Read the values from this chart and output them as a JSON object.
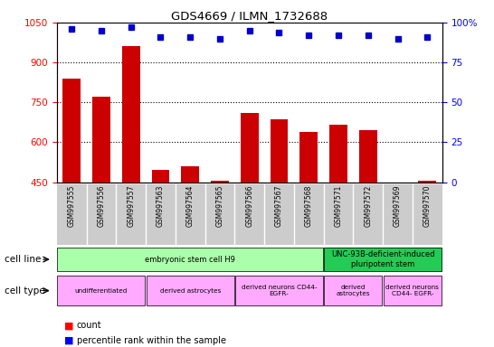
{
  "title": "GDS4669 / ILMN_1732688",
  "samples": [
    "GSM997555",
    "GSM997556",
    "GSM997557",
    "GSM997563",
    "GSM997564",
    "GSM997565",
    "GSM997566",
    "GSM997567",
    "GSM997568",
    "GSM997571",
    "GSM997572",
    "GSM997569",
    "GSM997570"
  ],
  "counts": [
    840,
    770,
    960,
    495,
    510,
    455,
    710,
    685,
    640,
    665,
    645,
    450,
    455
  ],
  "percentiles": [
    96,
    95,
    97,
    91,
    91,
    90,
    95,
    94,
    92,
    92,
    92,
    90,
    91
  ],
  "ylim_left": [
    450,
    1050
  ],
  "ylim_right": [
    0,
    100
  ],
  "yticks_left": [
    450,
    600,
    750,
    900,
    1050
  ],
  "yticks_right": [
    0,
    25,
    50,
    75,
    100
  ],
  "grid_lines": [
    600,
    750,
    900
  ],
  "cell_line_groups": [
    {
      "label": "embryonic stem cell H9",
      "start": 0,
      "end": 9,
      "color": "#aaffaa"
    },
    {
      "label": "UNC-93B-deficient-induced\npluripotent stem",
      "start": 9,
      "end": 13,
      "color": "#22cc55"
    }
  ],
  "cell_type_groups": [
    {
      "label": "undifferentiated",
      "start": 0,
      "end": 3,
      "color": "#ffaaff"
    },
    {
      "label": "derived astrocytes",
      "start": 3,
      "end": 6,
      "color": "#ffaaff"
    },
    {
      "label": "derived neurons CD44-\nEGFR-",
      "start": 6,
      "end": 9,
      "color": "#ffaaff"
    },
    {
      "label": "derived\nastrocytes",
      "start": 9,
      "end": 11,
      "color": "#ffaaff"
    },
    {
      "label": "derived neurons\nCD44- EGFR-",
      "start": 11,
      "end": 13,
      "color": "#ffaaff"
    }
  ],
  "bar_color": "#cc0000",
  "dot_color": "#0000cc",
  "label_bg_color": "#cccccc",
  "chart_bg_color": "#ffffff"
}
